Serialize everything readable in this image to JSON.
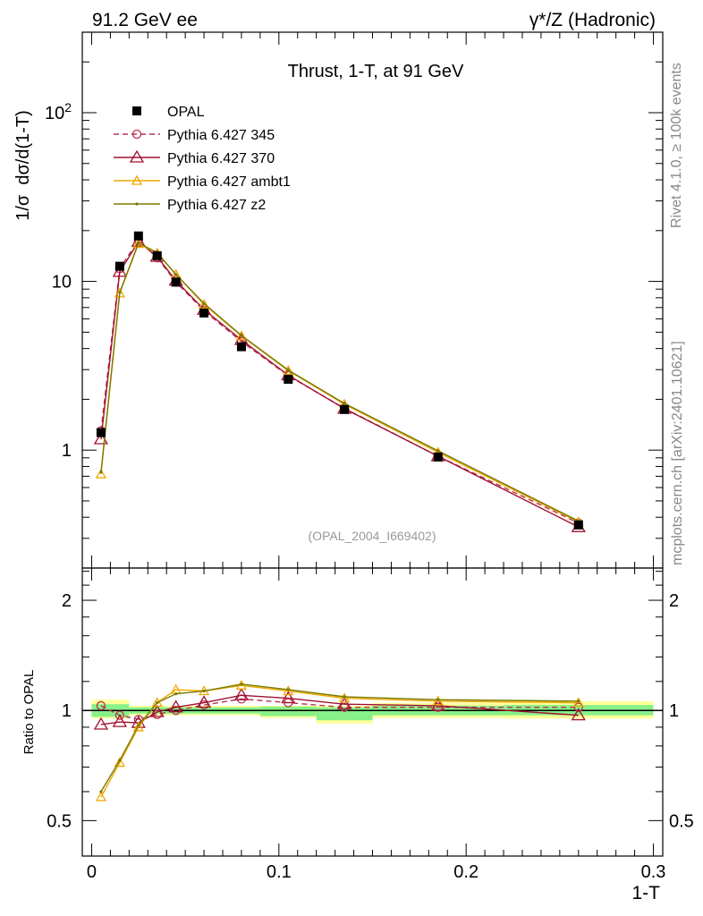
{
  "header": {
    "left": "91.2 GeV ee",
    "right": "γ*/Z (Hadronic)"
  },
  "side": {
    "rivet": "Rivet 4.1.0, ≥ 100k events",
    "mcplots": "mcplots.cern.ch [arXiv:2401.10621]"
  },
  "chart_data": [
    {
      "panel": "main",
      "type": "line",
      "title": "Thrust, 1-T, at 91 GeV",
      "annotation": "(OPAL_2004_I669402)",
      "xlabel": "1-T",
      "ylabel": "1/σ  dσ/d(1-T)",
      "yscale": "log",
      "xlim": [
        -0.005,
        0.305
      ],
      "ylim": [
        0.2,
        300
      ],
      "ytick_labels": [
        "1",
        "10",
        "10^2"
      ],
      "x": [
        0.005,
        0.015,
        0.025,
        0.035,
        0.045,
        0.06,
        0.08,
        0.105,
        0.135,
        0.185,
        0.26
      ],
      "series": [
        {
          "name": "OPAL",
          "values": [
            1.27,
            12.3,
            18.6,
            14.2,
            9.9,
            6.5,
            4.1,
            2.63,
            1.74,
            0.91,
            0.36
          ],
          "color": "#000000",
          "marker": "square",
          "dash": "none"
        },
        {
          "name": "Pythia 6.427 345",
          "values": [
            1.3,
            11.9,
            17.6,
            13.8,
            9.9,
            6.7,
            4.4,
            2.76,
            1.77,
            0.92,
            0.37
          ],
          "color": "#b83250",
          "marker": "circle",
          "dash": "6,4"
        },
        {
          "name": "Pythia 6.427 370",
          "values": [
            1.16,
            11.4,
            17.2,
            14.0,
            10.1,
            6.8,
            4.5,
            2.78,
            1.76,
            0.92,
            0.35
          ],
          "color": "#a01030",
          "marker": "triangle",
          "dash": "none"
        },
        {
          "name": "Pythia 6.427 ambt1",
          "values": [
            0.72,
            8.5,
            16.7,
            14.7,
            11.0,
            7.3,
            4.75,
            2.96,
            1.87,
            0.97,
            0.375
          ],
          "color": "#f0a800",
          "marker": "triangle-small",
          "dash": "none"
        },
        {
          "name": "Pythia 6.427 z2",
          "values": [
            0.74,
            8.6,
            16.9,
            14.8,
            11.0,
            7.4,
            4.78,
            2.98,
            1.89,
            0.99,
            0.38
          ],
          "color": "#7a7a00",
          "marker": "dot",
          "dash": "none"
        }
      ]
    },
    {
      "panel": "ratio",
      "type": "line",
      "ylabel": "Ratio to OPAL",
      "xlabel": "1-T",
      "yscale": "log",
      "xlim": [
        -0.005,
        0.305
      ],
      "ylim": [
        0.4,
        2.45
      ],
      "ytick_labels": [
        "0.5",
        "1",
        "2"
      ],
      "xtick_labels": [
        "0",
        "0.1",
        "0.2",
        "0.3"
      ],
      "bands": [
        {
          "x0": 0.0,
          "x1": 0.02,
          "inner_lo": 0.96,
          "inner_hi": 1.04,
          "outer_lo": 0.95,
          "outer_hi": 1.07
        },
        {
          "x0": 0.02,
          "x1": 0.09,
          "inner_lo": 0.98,
          "inner_hi": 1.02,
          "outer_lo": 0.97,
          "outer_hi": 1.03
        },
        {
          "x0": 0.09,
          "x1": 0.12,
          "inner_lo": 0.965,
          "inner_hi": 1.025,
          "outer_lo": 0.955,
          "outer_hi": 1.03
        },
        {
          "x0": 0.12,
          "x1": 0.15,
          "inner_lo": 0.94,
          "inner_hi": 1.02,
          "outer_lo": 0.92,
          "outer_hi": 1.03
        },
        {
          "x0": 0.15,
          "x1": 0.22,
          "inner_lo": 0.97,
          "inner_hi": 1.03,
          "outer_lo": 0.955,
          "outer_hi": 1.05
        },
        {
          "x0": 0.22,
          "x1": 0.3,
          "inner_lo": 0.97,
          "inner_hi": 1.035,
          "outer_lo": 0.95,
          "outer_hi": 1.06
        }
      ],
      "x": [
        0.005,
        0.015,
        0.025,
        0.035,
        0.045,
        0.06,
        0.08,
        0.105,
        0.135,
        0.185,
        0.26
      ],
      "series": [
        {
          "name": "Pythia 6.427 345",
          "values": [
            1.03,
            0.97,
            0.945,
            0.975,
            1.0,
            1.035,
            1.075,
            1.05,
            1.02,
            1.02,
            1.02
          ],
          "color": "#b83250",
          "marker": "circle",
          "dash": "6,4"
        },
        {
          "name": "Pythia 6.427 370",
          "values": [
            0.915,
            0.93,
            0.925,
            0.99,
            1.02,
            1.05,
            1.1,
            1.08,
            1.04,
            1.03,
            0.97
          ],
          "color": "#a01030",
          "marker": "triangle",
          "dash": "none"
        },
        {
          "name": "Pythia 6.427 ambt1",
          "values": [
            0.58,
            0.72,
            0.9,
            1.05,
            1.14,
            1.13,
            1.17,
            1.13,
            1.08,
            1.06,
            1.05
          ],
          "color": "#f0a800",
          "marker": "triangle-small",
          "dash": "none"
        },
        {
          "name": "Pythia 6.427 z2",
          "values": [
            0.6,
            0.73,
            0.91,
            1.05,
            1.11,
            1.13,
            1.18,
            1.14,
            1.09,
            1.07,
            1.06
          ],
          "color": "#7a7a00",
          "marker": "dot",
          "dash": "none"
        }
      ]
    }
  ]
}
